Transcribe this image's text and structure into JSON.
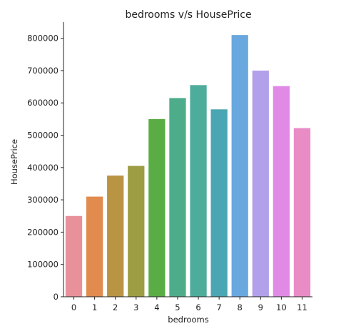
{
  "chart_data": {
    "type": "bar",
    "title": "bedrooms v/s HousePrice",
    "xlabel": "bedrooms",
    "ylabel": "HousePrice",
    "categories": [
      "0",
      "1",
      "2",
      "3",
      "4",
      "5",
      "6",
      "7",
      "8",
      "9",
      "10",
      "11"
    ],
    "values": [
      250000,
      310000,
      375000,
      405000,
      550000,
      615000,
      655000,
      580000,
      810000,
      700000,
      652000,
      522000
    ],
    "colors": [
      "#e8919a",
      "#e18b4e",
      "#b99443",
      "#9d9e44",
      "#5aac45",
      "#4dad8a",
      "#4dac9c",
      "#4aa6b3",
      "#68a8df",
      "#b3a0ea",
      "#e08ae6",
      "#e98bc5"
    ],
    "ylim": [
      0,
      850000
    ],
    "yticks": [
      "0",
      "100000",
      "200000",
      "300000",
      "400000",
      "500000",
      "600000",
      "700000",
      "800000"
    ],
    "grid": false,
    "legend": "none"
  }
}
